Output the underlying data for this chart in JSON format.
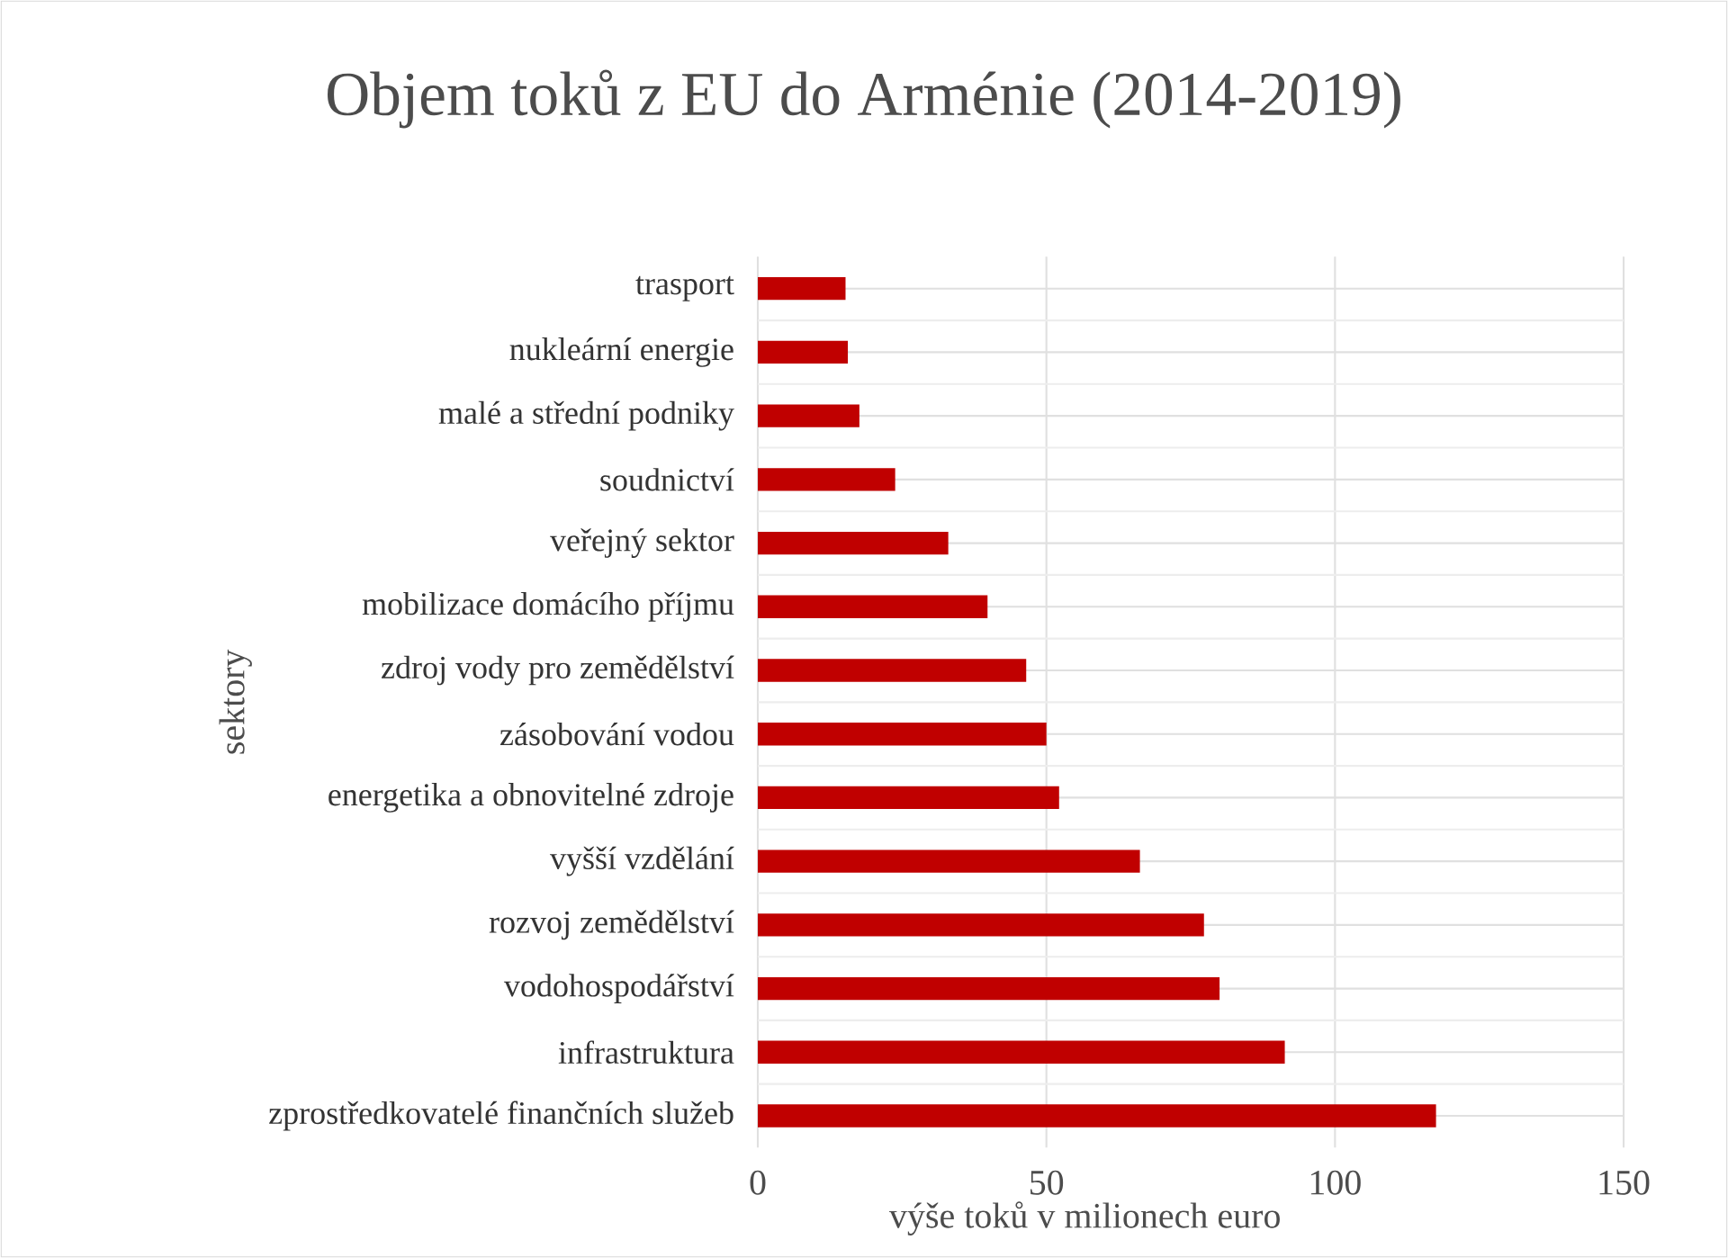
{
  "chart_data": {
    "type": "bar",
    "orientation": "horizontal",
    "title": "Objem toků z EU do Arménie (2014-2019)",
    "xlabel": "výše toků v milionech euro",
    "ylabel": "sektory",
    "categories": [
      "trasport",
      "nukleární energie",
      "malé a střední podniky",
      "soudnictví",
      "veřejný sektor",
      "mobilizace domácího příjmu",
      "zdroj vody pro zemědělství",
      "zásobování vodou",
      "energetika a obnovitelné zdroje",
      "vyšší vzdělání",
      "rozvoj zemědělství",
      "vodohospodářství",
      "infrastruktura",
      "zprostředkovatelé finančních služeb"
    ],
    "values": [
      15.2,
      15.6,
      17.6,
      23.8,
      33,
      39.8,
      46.5,
      50,
      52.2,
      66.2,
      77.3,
      80,
      91.3,
      117.5
    ],
    "color": "#c00000",
    "xlim": [
      0,
      150
    ],
    "xticks": [
      0,
      50,
      100,
      150
    ],
    "grid": true
  }
}
